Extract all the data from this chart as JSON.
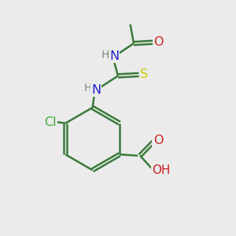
{
  "background_color": "#ebebeb",
  "bond_color": "#3a7a3a",
  "bond_width": 1.8,
  "atom_colors": {
    "N": "#2222cc",
    "O": "#cc2222",
    "S": "#cccc00",
    "Cl": "#44aa44",
    "C": "#3a7a3a",
    "H": "#7a8a7a"
  },
  "font_size": 11.5
}
